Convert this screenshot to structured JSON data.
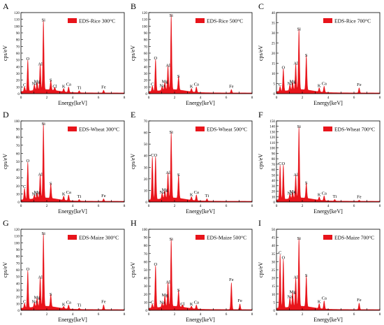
{
  "spectrum_color": "#e8141b",
  "panels": [
    {
      "letter": "A",
      "legend": "EDS-Rice 300°C",
      "ylabel": "cps/eV",
      "xlabel": "Energy[keV]",
      "ymax": 120,
      "yticks": [
        0,
        10,
        20,
        30,
        40,
        50,
        60,
        70,
        80,
        90,
        100,
        110,
        120
      ],
      "peaks": [
        {
          "label": "C",
          "e": 0.28,
          "h": 7
        },
        {
          "label": "O",
          "e": 0.53,
          "h": 46
        },
        {
          "label": "Na",
          "e": 1.04,
          "h": 9
        },
        {
          "label": "Mg",
          "e": 1.25,
          "h": 12
        },
        {
          "label": "Al",
          "e": 1.49,
          "h": 38
        },
        {
          "label": "Si",
          "e": 1.74,
          "h": 103
        },
        {
          "label": "S",
          "e": 2.31,
          "h": 14
        },
        {
          "label": "Cl",
          "e": 2.62,
          "h": 5
        },
        {
          "label": "K",
          "e": 3.31,
          "h": 5
        },
        {
          "label": "Ca",
          "e": 3.69,
          "h": 8
        },
        {
          "label": "Ti",
          "e": 4.51,
          "h": 3
        },
        {
          "label": "Fe",
          "e": 6.4,
          "h": 4
        }
      ]
    },
    {
      "letter": "B",
      "legend": "EDS-Rice 500°C",
      "ylabel": "cps/eV",
      "xlabel": "Energy[keV]",
      "ymax": 120,
      "yticks": [
        0,
        10,
        20,
        30,
        40,
        50,
        60,
        70,
        80,
        90,
        100,
        110,
        120
      ],
      "peaks": [
        {
          "label": "C",
          "e": 0.28,
          "h": 8
        },
        {
          "label": "O",
          "e": 0.53,
          "h": 47
        },
        {
          "label": "Na",
          "e": 1.04,
          "h": 6
        },
        {
          "label": "Mg",
          "e": 1.25,
          "h": 12
        },
        {
          "label": "Al",
          "e": 1.49,
          "h": 36
        },
        {
          "label": "Si",
          "e": 1.74,
          "h": 111
        },
        {
          "label": "S",
          "e": 2.31,
          "h": 20
        },
        {
          "label": "K",
          "e": 3.31,
          "h": 5
        },
        {
          "label": "Ca",
          "e": 3.69,
          "h": 8
        },
        {
          "label": "Fe",
          "e": 6.4,
          "h": 5
        }
      ]
    },
    {
      "letter": "C",
      "legend": "EDS-Rice 700°C",
      "ylabel": "cps/eV",
      "xlabel": "Energy[keV]",
      "ymax": 40,
      "yticks": [
        0,
        5,
        10,
        15,
        20,
        25,
        30,
        35,
        40
      ],
      "peaks": [
        {
          "label": "C",
          "e": 0.28,
          "h": 2.5
        },
        {
          "label": "O",
          "e": 0.53,
          "h": 11
        },
        {
          "label": "Na",
          "e": 1.04,
          "h": 3
        },
        {
          "label": "Mg",
          "e": 1.25,
          "h": 4
        },
        {
          "label": "Al",
          "e": 1.49,
          "h": 13
        },
        {
          "label": "Si",
          "e": 1.74,
          "h": 30
        },
        {
          "label": "S",
          "e": 2.31,
          "h": 17
        },
        {
          "label": "K",
          "e": 3.31,
          "h": 2
        },
        {
          "label": "Ca",
          "e": 3.69,
          "h": 3
        },
        {
          "label": "Fe",
          "e": 6.4,
          "h": 2.5
        }
      ]
    },
    {
      "letter": "D",
      "legend": "EDS-Wheat 300°C",
      "ylabel": "cps/eV",
      "xlabel": "Energy[keV]",
      "ymax": 100,
      "yticks": [
        0,
        10,
        20,
        30,
        40,
        50,
        60,
        70,
        80,
        90,
        100
      ],
      "peaks": [
        {
          "label": "C",
          "e": 0.28,
          "h": 14
        },
        {
          "label": "O",
          "e": 0.53,
          "h": 46
        },
        {
          "label": "Na",
          "e": 1.04,
          "h": 5
        },
        {
          "label": "Mg",
          "e": 1.25,
          "h": 7
        },
        {
          "label": "Al",
          "e": 1.49,
          "h": 29
        },
        {
          "label": "Si",
          "e": 1.74,
          "h": 92
        },
        {
          "label": "S",
          "e": 2.31,
          "h": 18
        },
        {
          "label": "K",
          "e": 3.31,
          "h": 5
        },
        {
          "label": "Ca",
          "e": 3.69,
          "h": 7
        },
        {
          "label": "Ti",
          "e": 4.51,
          "h": 2
        },
        {
          "label": "Fe",
          "e": 6.4,
          "h": 3
        }
      ]
    },
    {
      "letter": "E",
      "legend": "EDS-Wheat 500°C",
      "ylabel": "cps/eV",
      "xlabel": "Energy[keV]",
      "ymax": 70,
      "yticks": [
        0,
        10,
        20,
        30,
        40,
        50,
        60,
        70
      ],
      "peaks": [
        {
          "label": "C",
          "e": 0.28,
          "h": 37
        },
        {
          "label": "O",
          "e": 0.53,
          "h": 37
        },
        {
          "label": "Na",
          "e": 1.04,
          "h": 5
        },
        {
          "label": "Mg",
          "e": 1.25,
          "h": 7
        },
        {
          "label": "Al",
          "e": 1.49,
          "h": 22
        },
        {
          "label": "Si",
          "e": 1.74,
          "h": 57
        },
        {
          "label": "S",
          "e": 2.31,
          "h": 20
        },
        {
          "label": "K",
          "e": 3.31,
          "h": 3
        },
        {
          "label": "Ca",
          "e": 3.69,
          "h": 5
        },
        {
          "label": "Ti",
          "e": 4.51,
          "h": 2
        }
      ]
    },
    {
      "letter": "F",
      "legend": "EDS-Wheat 700°C",
      "ylabel": "cps/eV",
      "xlabel": "Energy[keV]",
      "ymax": 150,
      "yticks": [
        0,
        10,
        20,
        30,
        40,
        50,
        60,
        70,
        80,
        90,
        100,
        110,
        120,
        130,
        140,
        150
      ],
      "peaks": [
        {
          "label": "C",
          "e": 0.28,
          "h": 64
        },
        {
          "label": "O",
          "e": 0.53,
          "h": 64
        },
        {
          "label": "Na",
          "e": 1.04,
          "h": 9
        },
        {
          "label": "Mg",
          "e": 1.25,
          "h": 12
        },
        {
          "label": "Al",
          "e": 1.49,
          "h": 43
        },
        {
          "label": "Si",
          "e": 1.74,
          "h": 132
        },
        {
          "label": "S",
          "e": 2.31,
          "h": 28
        },
        {
          "label": "K",
          "e": 3.31,
          "h": 6
        },
        {
          "label": "Ca",
          "e": 3.69,
          "h": 9
        },
        {
          "label": "Ti",
          "e": 4.51,
          "h": 3
        },
        {
          "label": "Fe",
          "e": 6.4,
          "h": 2
        }
      ]
    },
    {
      "letter": "G",
      "legend": "EDS-Maize 300°C",
      "ylabel": "cps/eV",
      "xlabel": "Energy[keV]",
      "ymax": 120,
      "yticks": [
        0,
        10,
        20,
        30,
        40,
        50,
        60,
        70,
        80,
        90,
        100,
        110,
        120
      ],
      "peaks": [
        {
          "label": "C",
          "e": 0.28,
          "h": 7
        },
        {
          "label": "O",
          "e": 0.53,
          "h": 55
        },
        {
          "label": "Na",
          "e": 1.04,
          "h": 7
        },
        {
          "label": "Mg",
          "e": 1.25,
          "h": 13
        },
        {
          "label": "Al",
          "e": 1.49,
          "h": 43
        },
        {
          "label": "Si",
          "e": 1.74,
          "h": 108
        },
        {
          "label": "S",
          "e": 2.31,
          "h": 18
        },
        {
          "label": "K",
          "e": 3.31,
          "h": 3
        },
        {
          "label": "Ca",
          "e": 3.69,
          "h": 6
        },
        {
          "label": "Ti",
          "e": 4.51,
          "h": 2
        },
        {
          "label": "Fe",
          "e": 6.4,
          "h": 7
        }
      ]
    },
    {
      "letter": "H",
      "legend": "EDS-Maize 500°C",
      "ylabel": "cps/eV",
      "xlabel": "Energy[keV]",
      "ymax": 100,
      "yticks": [
        0,
        10,
        20,
        30,
        40,
        50,
        60,
        70,
        80,
        90,
        100
      ],
      "peaks": [
        {
          "label": "C",
          "e": 0.28,
          "h": 5
        },
        {
          "label": "O",
          "e": 0.53,
          "h": 52
        },
        {
          "label": "Na",
          "e": 1.04,
          "h": 5
        },
        {
          "label": "Mg",
          "e": 1.25,
          "h": 14
        },
        {
          "label": "Al",
          "e": 1.49,
          "h": 30
        },
        {
          "label": "Si",
          "e": 1.74,
          "h": 83
        },
        {
          "label": "S",
          "e": 2.31,
          "h": 20
        },
        {
          "label": "Cl",
          "e": 2.62,
          "h": 3
        },
        {
          "label": "K",
          "e": 3.31,
          "h": 3
        },
        {
          "label": "Ca",
          "e": 3.69,
          "h": 5
        },
        {
          "label": "Fe",
          "e": 6.4,
          "h": 33
        },
        {
          "label": "Fe",
          "e": 7.06,
          "h": 7
        }
      ]
    },
    {
      "letter": "I",
      "legend": "EDS-Maize 700°C",
      "ylabel": "cps/eV",
      "xlabel": "Energy[keV]",
      "ymax": 50,
      "yticks": [
        0,
        5,
        10,
        15,
        20,
        25,
        30,
        35,
        40,
        45,
        50
      ],
      "peaks": [
        {
          "label": "C",
          "e": 0.28,
          "h": 33
        },
        {
          "label": "O",
          "e": 0.53,
          "h": 30
        },
        {
          "label": "Na",
          "e": 1.04,
          "h": 6
        },
        {
          "label": "Mg",
          "e": 1.25,
          "h": 9
        },
        {
          "label": "Al",
          "e": 1.49,
          "h": 18
        },
        {
          "label": "Si",
          "e": 1.74,
          "h": 42
        },
        {
          "label": "S",
          "e": 2.31,
          "h": 19
        },
        {
          "label": "K",
          "e": 3.31,
          "h": 3
        },
        {
          "label": "Ca",
          "e": 3.69,
          "h": 5
        },
        {
          "label": "Fe",
          "e": 6.4,
          "h": 4
        }
      ]
    }
  ],
  "xticks": [
    0,
    1,
    2,
    3,
    4,
    5,
    6,
    7,
    8
  ],
  "xticklabels": [
    "0",
    "",
    "2",
    "",
    "4",
    "",
    "6",
    "",
    "8"
  ]
}
